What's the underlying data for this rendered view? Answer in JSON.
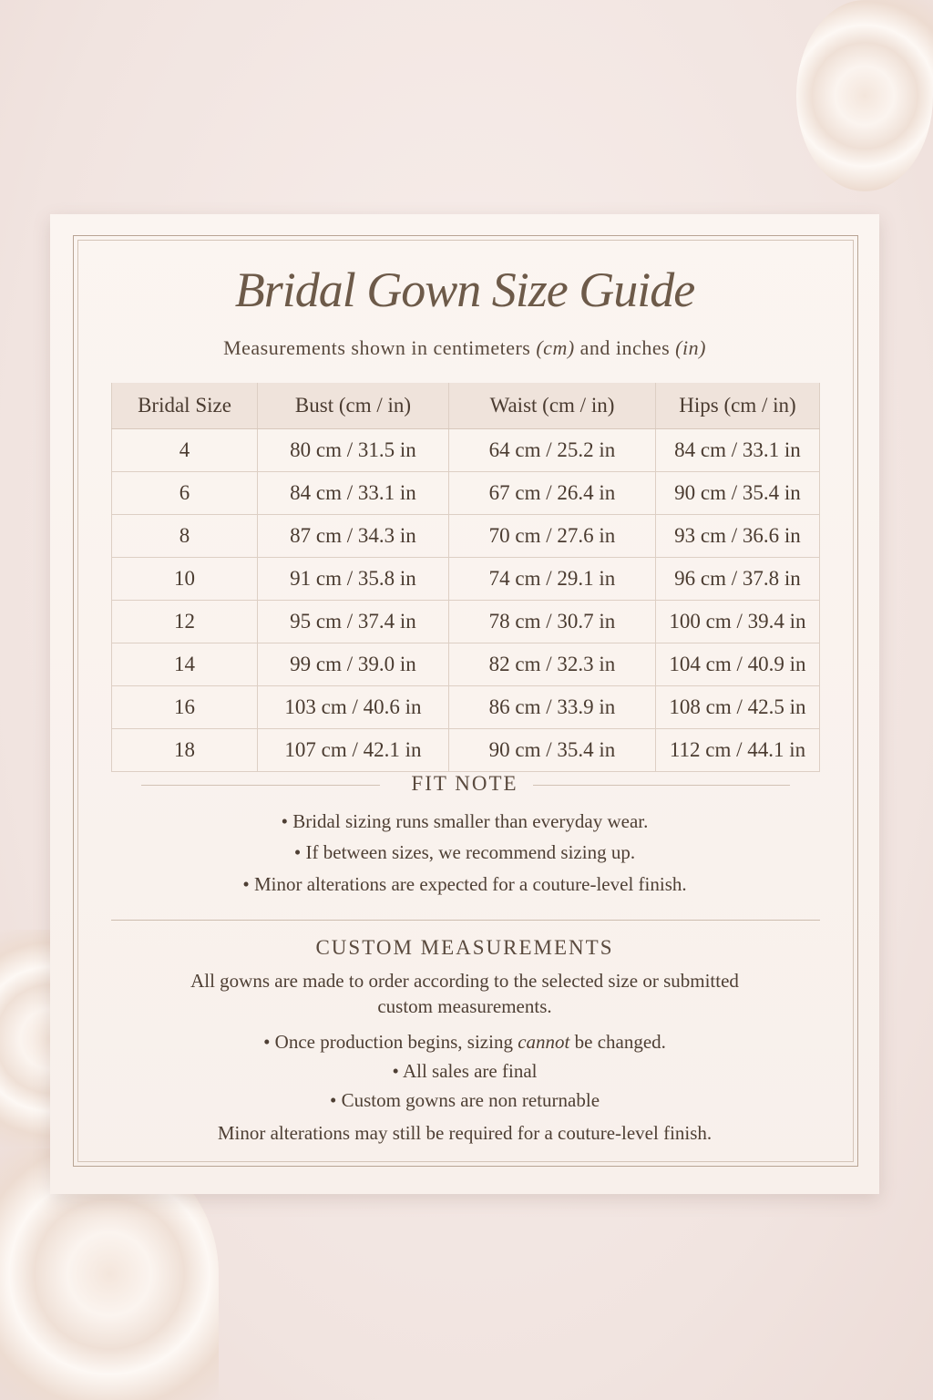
{
  "title": "Bridal Gown Size Guide",
  "subtitle": {
    "prefix": "Measurements shown in centimeters ",
    "cm": "(cm)",
    "middle": " and inches ",
    "in": "(in)"
  },
  "table": {
    "headers": [
      "Bridal Size",
      "Bust (cm / in)",
      "Waist (cm / in)",
      "Hips (cm / in)"
    ],
    "rows": [
      [
        "4",
        "80 cm / 31.5 in",
        "64 cm / 25.2 in",
        "84 cm / 33.1 in"
      ],
      [
        "6",
        "84 cm / 33.1 in",
        "67 cm / 26.4 in",
        "90 cm / 35.4 in"
      ],
      [
        "8",
        "87 cm / 34.3 in",
        "70 cm / 27.6 in",
        "93 cm / 36.6 in"
      ],
      [
        "10",
        "91 cm / 35.8 in",
        "74 cm / 29.1 in",
        "96 cm / 37.8 in"
      ],
      [
        "12",
        "95 cm / 37.4 in",
        "78 cm / 30.7 in",
        "100 cm / 39.4 in"
      ],
      [
        "14",
        "99 cm / 39.0 in",
        "82 cm / 32.3 in",
        "104 cm / 40.9 in"
      ],
      [
        "16",
        "103 cm / 40.6 in",
        "86 cm / 33.9 in",
        "108 cm / 42.5 in"
      ],
      [
        "18",
        "107 cm / 42.1 in",
        "90 cm / 35.4 in",
        "112 cm / 44.1 in"
      ]
    ]
  },
  "fit_note": {
    "heading": "FIT NOTE",
    "bullets": [
      "• Bridal sizing runs smaller than everyday wear.",
      "• If between sizes, we recommend sizing up.",
      "• Minor alterations are expected for a couture-level finish."
    ]
  },
  "custom": {
    "heading": "CUSTOM MEASUREMENTS",
    "intro_line1": "All gowns are made to order according to the selected size or submitted",
    "intro_line2": "custom measurements.",
    "bullet1": {
      "before": "• Once production begins, sizing ",
      "emphasis": "cannot",
      "after": " be changed."
    },
    "bullet2": "• All sales are final",
    "bullet3": "• Custom gowns are non returnable",
    "footer": "Minor alterations may still be required for a couture-level finish."
  },
  "colors": {
    "background": "#f1e4e0",
    "card": "#fbf5f1",
    "text": "#4a3b30",
    "title": "#6d5a49"
  }
}
